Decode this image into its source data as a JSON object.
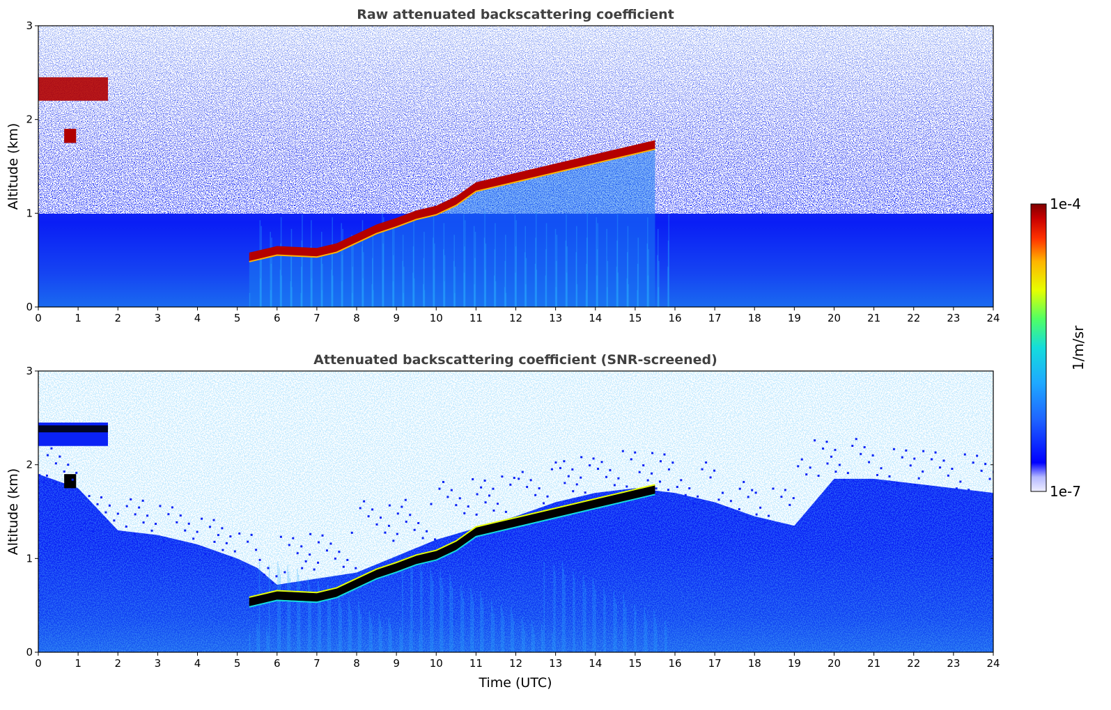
{
  "chart_data": [
    {
      "type": "heatmap",
      "title": "Raw attenuated backscattering coefficient",
      "xlabel": "",
      "ylabel": "Altitude (km)",
      "xlim": [
        0,
        24
      ],
      "ylim": [
        0,
        3
      ],
      "x_ticks": [
        "0",
        "1",
        "2",
        "3",
        "4",
        "5",
        "6",
        "7",
        "8",
        "9",
        "10",
        "11",
        "12",
        "13",
        "14",
        "15",
        "16",
        "17",
        "18",
        "19",
        "20",
        "21",
        "22",
        "23",
        "24"
      ],
      "y_ticks": [
        "0",
        "1",
        "2",
        "3"
      ],
      "colorscale": "log, 1e-7 to 1e-4 1/m/sr",
      "features": {
        "boundary_layer_top_km": {
          "time_utc": [
            5.3,
            6.0,
            7.0,
            7.5,
            8.0,
            8.5,
            9.0,
            9.5,
            10.0,
            10.5,
            11.0,
            11.5,
            12.0,
            12.5,
            13.0,
            13.5,
            14.0,
            14.5,
            15.0,
            15.5
          ],
          "altitude_km": [
            0.55,
            0.62,
            0.6,
            0.65,
            0.75,
            0.85,
            0.92,
            1.0,
            1.05,
            1.15,
            1.3,
            1.35,
            1.4,
            1.45,
            1.5,
            1.55,
            1.6,
            1.65,
            1.7,
            1.75
          ]
        },
        "cloud_layer": {
          "time_utc": [
            0,
            1.75
          ],
          "altitude_km": [
            2.2,
            2.45
          ]
        },
        "small_cloud": {
          "time_utc": [
            0.65,
            0.95
          ],
          "altitude_km": [
            1.75,
            1.9
          ]
        }
      }
    },
    {
      "type": "heatmap",
      "title": "Attenuated backscattering coefficient (SNR-screened)",
      "xlabel": "Time (UTC)",
      "ylabel": "Altitude (km)",
      "xlim": [
        0,
        24
      ],
      "ylim": [
        0,
        3
      ],
      "x_ticks": [
        "0",
        "1",
        "2",
        "3",
        "4",
        "5",
        "6",
        "7",
        "8",
        "9",
        "10",
        "11",
        "12",
        "13",
        "14",
        "15",
        "16",
        "17",
        "18",
        "19",
        "20",
        "21",
        "22",
        "23",
        "24"
      ],
      "y_ticks": [
        "0",
        "1",
        "2",
        "3"
      ],
      "colorscale": "log, 1e-7 to 1e-4 1/m/sr",
      "features": {
        "screened_signal_top_km": {
          "time_utc": [
            0,
            1,
            2,
            3,
            4,
            5,
            5.5,
            6,
            8,
            10,
            12,
            13,
            14,
            15,
            16,
            17,
            18,
            19,
            20,
            21,
            22,
            23,
            24
          ],
          "altitude_km": [
            1.9,
            1.75,
            1.3,
            1.25,
            1.15,
            1.0,
            0.9,
            0.72,
            0.85,
            1.2,
            1.45,
            1.6,
            1.7,
            1.75,
            1.7,
            1.6,
            1.45,
            1.35,
            1.85,
            1.85,
            1.8,
            1.75,
            1.7
          ]
        }
      }
    }
  ],
  "colorbar": {
    "max_label": "1e-4",
    "min_label": "1e-7",
    "unit_label": "1/m/sr",
    "colors": [
      "#e8e8ff",
      "#0000ff",
      "#1e64ff",
      "#1eaaff",
      "#14dcdc",
      "#50ff64",
      "#e6ff00",
      "#ffb400",
      "#ff3200",
      "#c80000",
      "#800000"
    ]
  }
}
